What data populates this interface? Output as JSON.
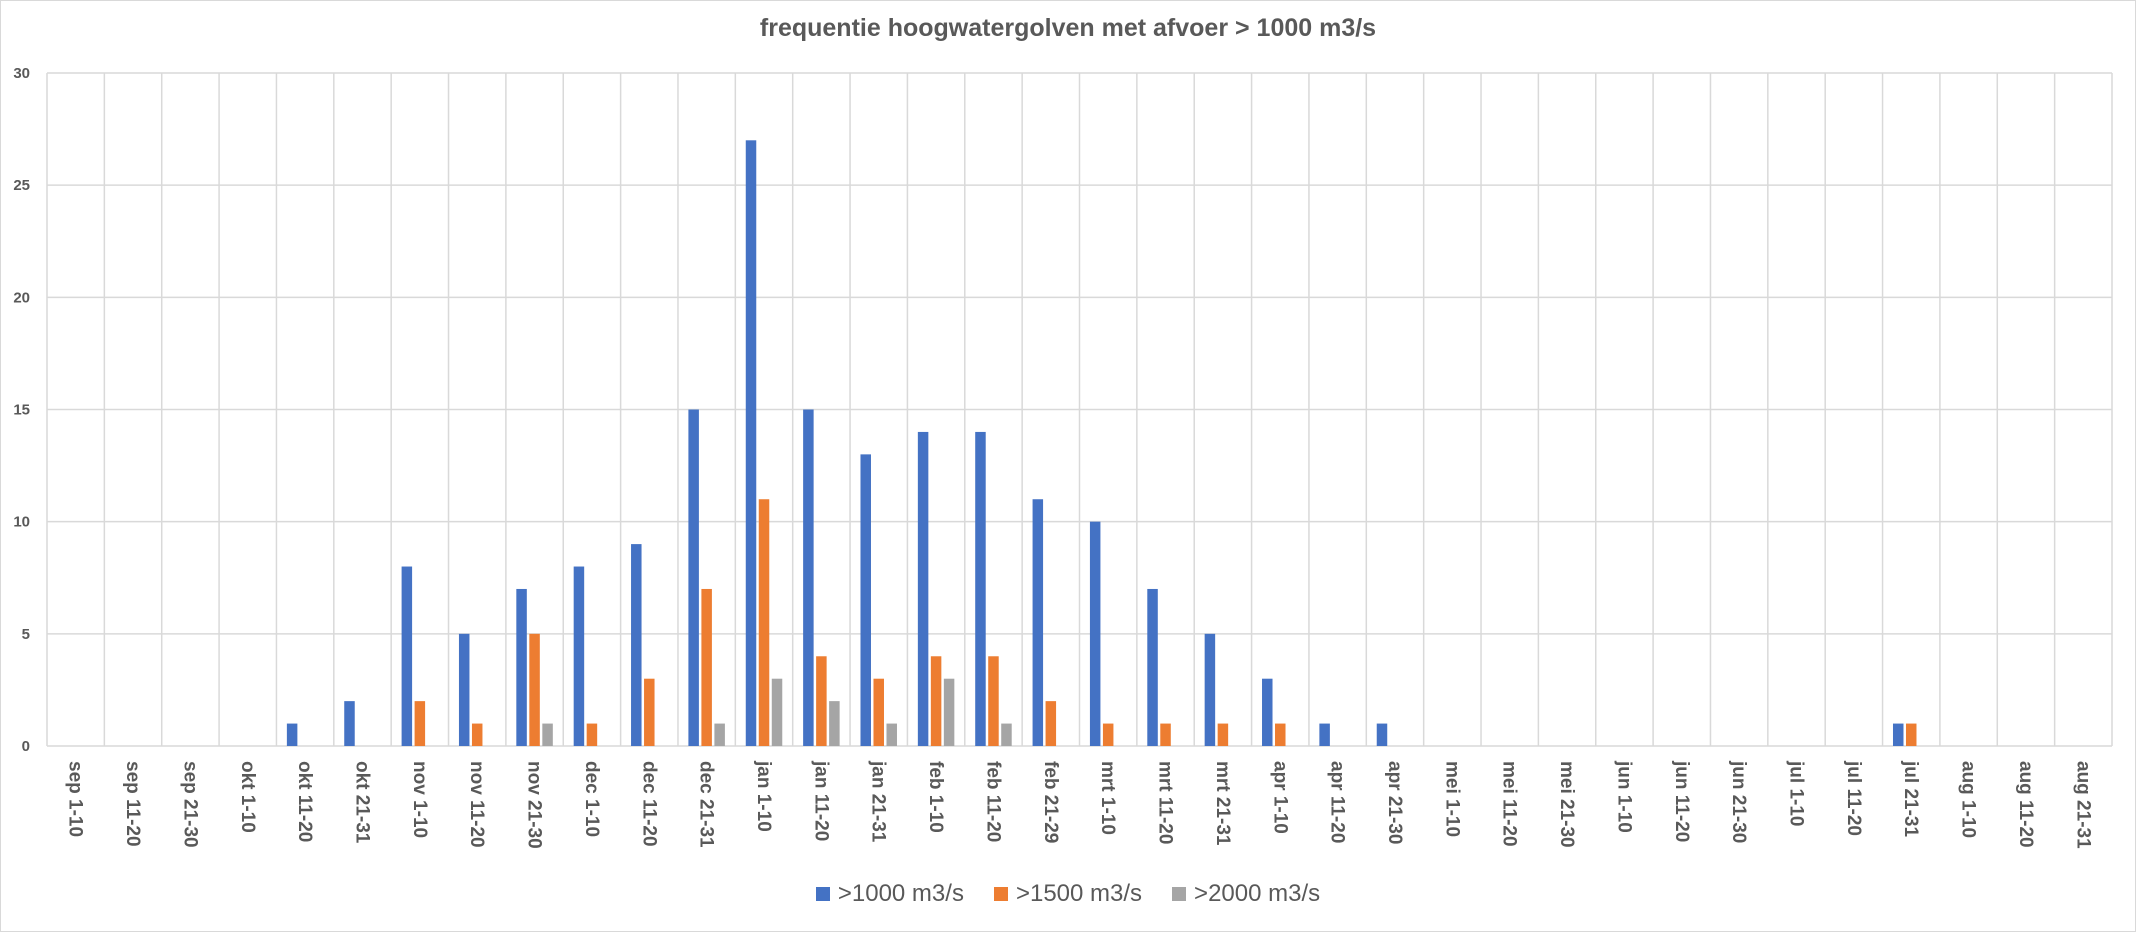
{
  "chart_data": {
    "type": "bar",
    "title": "frequentie hoogwatergolven met afvoer > 1000 m3/s",
    "xlabel": "",
    "ylabel": "",
    "ylim": [
      0,
      30
    ],
    "yticks": [
      0,
      5,
      10,
      15,
      20,
      25,
      30
    ],
    "grid": true,
    "legend_position": "bottom",
    "categories": [
      "sep 1-10",
      "sep 11-20",
      "sep 21-30",
      "okt 1-10",
      "okt 11-20",
      "okt 21-31",
      "nov 1-10",
      "nov 11-20",
      "nov 21-30",
      "dec 1-10",
      "dec 11-20",
      "dec 21-31",
      "jan 1-10",
      "jan 11-20",
      "jan 21-31",
      "feb 1-10",
      "feb 11-20",
      "feb 21-29",
      "mrt 1-10",
      "mrt 11-20",
      "mrt 21-31",
      "apr 1-10",
      "apr 11-20",
      "apr 21-30",
      "mei 1-10",
      "mei 11-20",
      "mei 21-30",
      "jun 1-10",
      "jun 11-20",
      "jun 21-30",
      "jul 1-10",
      "jul 11-20",
      "jul 21-31",
      "aug 1-10",
      "aug 11-20",
      "aug 21-31"
    ],
    "series": [
      {
        "name": ">1000 m3/s",
        "color": "#4472c4",
        "values": [
          0,
          0,
          0,
          0,
          1,
          2,
          8,
          5,
          7,
          8,
          9,
          15,
          27,
          15,
          13,
          14,
          14,
          11,
          10,
          7,
          5,
          3,
          1,
          1,
          0,
          0,
          0,
          0,
          0,
          0,
          0,
          0,
          1,
          0,
          0,
          0
        ]
      },
      {
        "name": ">1500 m3/s",
        "color": "#ed7d31",
        "values": [
          0,
          0,
          0,
          0,
          0,
          0,
          2,
          1,
          5,
          1,
          3,
          7,
          11,
          4,
          3,
          4,
          4,
          2,
          1,
          1,
          1,
          1,
          0,
          0,
          0,
          0,
          0,
          0,
          0,
          0,
          0,
          0,
          1,
          0,
          0,
          0
        ]
      },
      {
        "name": ">2000 m3/s",
        "color": "#a5a5a5",
        "values": [
          0,
          0,
          0,
          0,
          0,
          0,
          0,
          0,
          1,
          0,
          0,
          1,
          3,
          2,
          1,
          3,
          1,
          0,
          0,
          0,
          0,
          0,
          0,
          0,
          0,
          0,
          0,
          0,
          0,
          0,
          0,
          0,
          0,
          0,
          0,
          0
        ]
      }
    ]
  }
}
